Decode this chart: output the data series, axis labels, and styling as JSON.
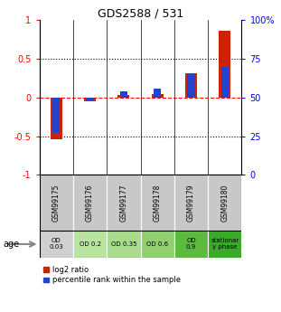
{
  "title": "GDS2588 / 531",
  "samples": [
    "GSM99175",
    "GSM99176",
    "GSM99177",
    "GSM99178",
    "GSM99179",
    "GSM99180"
  ],
  "log2_ratio": [
    -0.54,
    -0.05,
    0.03,
    0.05,
    0.31,
    0.87
  ],
  "percentile_rank": [
    27,
    48,
    54,
    56,
    65,
    70
  ],
  "age_labels": [
    "OD\n0.03",
    "OD 0.2",
    "OD 0.35",
    "OD 0.6",
    "OD\n0.9",
    "stationar\ny phase"
  ],
  "age_colors": [
    "#d0d0d0",
    "#b8e4a0",
    "#a8dc8c",
    "#90d070",
    "#5cba40",
    "#3aaa28"
  ],
  "sample_bg_color": "#c8c8c8",
  "bar_color_red": "#cc2200",
  "bar_color_blue": "#2244cc",
  "ylim_left": [
    -1,
    1
  ],
  "ylim_right": [
    0,
    100
  ],
  "yticks_left": [
    -1,
    -0.5,
    0,
    0.5,
    1
  ],
  "yticks_right": [
    0,
    25,
    50,
    75,
    100
  ],
  "ytick_labels_left": [
    "-1",
    "-0.5",
    "0",
    "0.5",
    "1"
  ],
  "ytick_labels_right": [
    "0",
    "25",
    "50",
    "75",
    "100%"
  ],
  "legend_labels": [
    "log2 ratio",
    "percentile rank within the sample"
  ]
}
